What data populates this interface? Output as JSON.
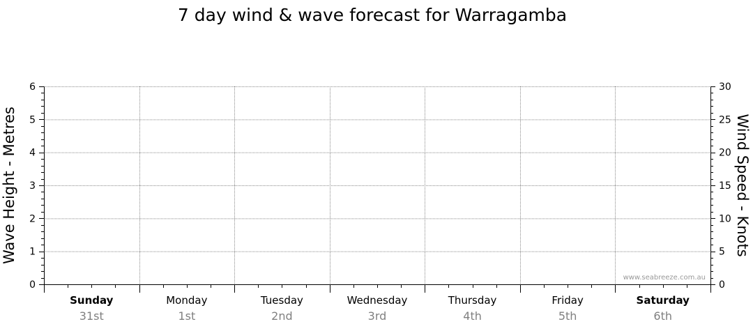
{
  "chart_data": {
    "type": "line",
    "title": "7 day wind & wave forecast for Warragamba",
    "ylabel_left": "Wave Height - Metres",
    "ylabel_right": "Wind Speed - Knots",
    "ylim_left": [
      0,
      6
    ],
    "ylim_right": [
      0,
      30
    ],
    "yticks_left": [
      "0",
      "1",
      "2",
      "3",
      "4",
      "5",
      "6"
    ],
    "yticks_right": [
      "0",
      "5",
      "10",
      "15",
      "20",
      "25",
      "30"
    ],
    "days": [
      {
        "day": "Sunday",
        "date": "31st",
        "bold": true
      },
      {
        "day": "Monday",
        "date": "1st",
        "bold": false
      },
      {
        "day": "Tuesday",
        "date": "2nd",
        "bold": false
      },
      {
        "day": "Wednesday",
        "date": "3rd",
        "bold": false
      },
      {
        "day": "Thursday",
        "date": "4th",
        "bold": false
      },
      {
        "day": "Friday",
        "date": "5th",
        "bold": false
      },
      {
        "day": "Saturday",
        "date": "6th",
        "bold": true
      }
    ],
    "series": [],
    "grid": true,
    "watermark": "www.seabreeze.com.au"
  }
}
